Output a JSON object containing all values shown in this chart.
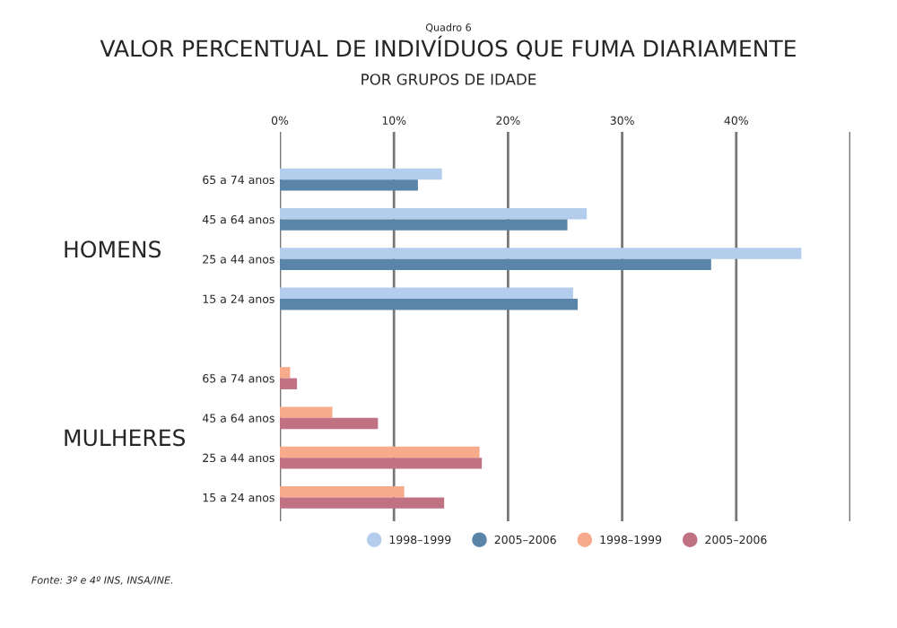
{
  "chart_data": {
    "type": "bar",
    "orientation": "horizontal",
    "title": "VALOR PERCENTUAL DE INDIVÍDUOS QUE FUMA DIARIAMENTE",
    "subtitle": "POR GRUPOS DE IDADE",
    "categories": [
      "65 a 74 anos",
      "45 a 64 anos",
      "25 a 44 anos",
      "15 a 24 anos",
      null,
      "65 a 74 anos",
      "45 a 64 anos",
      "25 a 44 anos",
      "15 a 24 anos"
    ],
    "series": [
      {
        "name": "1998–1999",
        "color": "#b4cdec",
        "values": [
          14.2,
          26.9,
          45.7,
          25.7,
          null,
          null,
          null,
          null,
          null
        ]
      },
      {
        "name": "2005–2006",
        "color": "#5a84a8",
        "values": [
          12.1,
          25.2,
          37.8,
          26.1,
          null,
          null,
          null,
          null,
          null
        ]
      },
      {
        "name": "1998–1999",
        "color": "#f7aa8c",
        "values": [
          null,
          null,
          null,
          null,
          null,
          0.9,
          4.6,
          17.5,
          10.9
        ]
      },
      {
        "name": "2005–2006",
        "color": "#c07283",
        "values": [
          null,
          null,
          null,
          null,
          null,
          1.5,
          8.6,
          17.7,
          14.4
        ]
      }
    ],
    "xlim": [
      0,
      50
    ],
    "xticks": [
      {
        "value": 0,
        "label": "0%"
      },
      {
        "value": 10,
        "label": "10%"
      },
      {
        "value": 20,
        "label": "20%"
      },
      {
        "value": 30,
        "label": "30%"
      },
      {
        "value": 40,
        "label": "40%"
      },
      {
        "value": 50,
        "label": null
      }
    ],
    "grid": "x",
    "legend": "bottom",
    "marker": "circle",
    "annotations": [
      "Quadro 6",
      "HOMENS",
      "MULHERES",
      "Fonte: 3º e 4º INS, INSA/INE."
    ]
  }
}
